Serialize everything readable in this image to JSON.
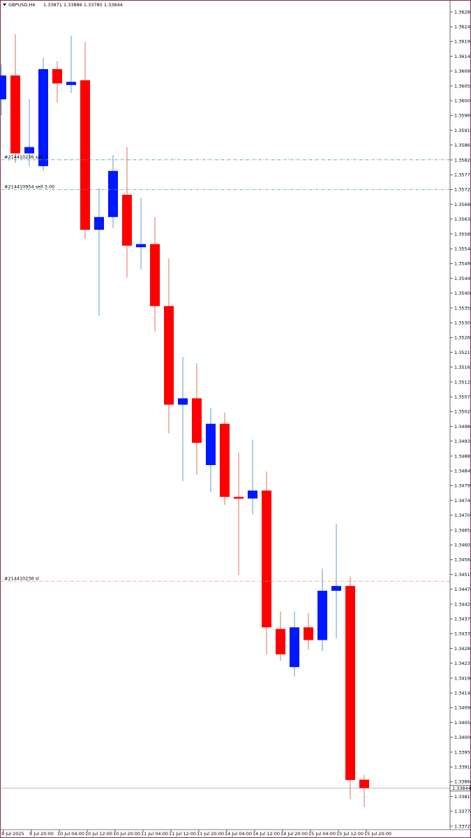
{
  "header": {
    "symbol": "GBPUSD,H4",
    "ohlc": "1.33871 1.33886 1.33785 1.33844"
  },
  "orders": [
    {
      "label": "#214410236 sell 7",
      "price": 1.3582
    },
    {
      "label": "#214410954 sell 3.00",
      "price": 1.35726
    },
    {
      "label": "#214410236 sl",
      "price": 1.34495
    }
  ],
  "current_price": {
    "label": "1.33844",
    "value": 1.33844
  },
  "colors": {
    "bull": "#0018ff",
    "bear": "#ff0000",
    "bull_wick": "#5b9bd5",
    "bear_wick": "#e07050",
    "order_line": "#4a9aa0",
    "sl_line": "#f0a080",
    "frame": "#7a2f5a",
    "price_line": "#b0b0b0"
  },
  "chart_data": {
    "type": "candlestick",
    "title": "",
    "y_axis_ticks": [
      "1.36285",
      "1.36240",
      "1.36190",
      "1.36145",
      "1.36095",
      "1.36050",
      "1.36005",
      "1.35960",
      "1.35910",
      "1.35865",
      "1.35820",
      "1.35770",
      "1.35725",
      "1.35680",
      "1.35630",
      "1.35585",
      "1.35540",
      "1.35490",
      "1.35445",
      "1.35400",
      "1.35350",
      "1.35305",
      "1.35260",
      "1.35215",
      "1.35165",
      "1.35120",
      "1.35075",
      "1.35025",
      "1.34980",
      "1.34935",
      "1.34885",
      "1.34840",
      "1.34795",
      "1.34745",
      "1.34700",
      "1.34655",
      "1.34605",
      "1.34560",
      "1.34515",
      "1.34470",
      "1.34420",
      "1.34375",
      "1.34330",
      "1.34280",
      "1.34235",
      "1.34190",
      "1.34140",
      "1.34095",
      "1.34050",
      "1.34000",
      "1.33955",
      "1.33910",
      "1.33860",
      "1.33815",
      "1.33770",
      "1.33725"
    ],
    "x_axis_ticks": [
      "9 Jul 2025",
      "9 Jul 20:00",
      "10 Jul 04:00",
      "10 Jul 12:00",
      "10 Jul 20:00",
      "11 Jul 04:00",
      "11 Jul 12:00",
      "11 Jul 20:00",
      "14 Jul 04:00",
      "14 Jul 12:00",
      "14 Jul 20:00",
      "15 Jul 04:00",
      "15 Jul 12:00",
      "15 Jul 20:00"
    ],
    "ylim": [
      1.33725,
      1.36285
    ],
    "candles": [
      {
        "o": 1.3601,
        "h": 1.3612,
        "l": 1.3596,
        "c": 1.36085
      },
      {
        "o": 1.36085,
        "h": 1.36215,
        "l": 1.3581,
        "c": 1.3584
      },
      {
        "o": 1.3584,
        "h": 1.3601,
        "l": 1.358,
        "c": 1.3586
      },
      {
        "o": 1.358,
        "h": 1.3614,
        "l": 1.35785,
        "c": 1.36105
      },
      {
        "o": 1.36105,
        "h": 1.3613,
        "l": 1.36,
        "c": 1.3606
      },
      {
        "o": 1.36055,
        "h": 1.3621,
        "l": 1.3603,
        "c": 1.36065
      },
      {
        "o": 1.3607,
        "h": 1.3619,
        "l": 1.3557,
        "c": 1.356
      },
      {
        "o": 1.356,
        "h": 1.3573,
        "l": 1.3533,
        "c": 1.3564
      },
      {
        "o": 1.3564,
        "h": 1.35835,
        "l": 1.35605,
        "c": 1.35785
      },
      {
        "o": 1.3571,
        "h": 1.3586,
        "l": 1.3545,
        "c": 1.3555
      },
      {
        "o": 1.35545,
        "h": 1.357,
        "l": 1.35475,
        "c": 1.35555
      },
      {
        "o": 1.35555,
        "h": 1.3564,
        "l": 1.3528,
        "c": 1.3536
      },
      {
        "o": 1.3536,
        "h": 1.3551,
        "l": 1.3496,
        "c": 1.3505
      },
      {
        "o": 1.3505,
        "h": 1.352,
        "l": 1.3481,
        "c": 1.3507
      },
      {
        "o": 1.3507,
        "h": 1.3518,
        "l": 1.3483,
        "c": 1.3493
      },
      {
        "o": 1.3486,
        "h": 1.3504,
        "l": 1.34775,
        "c": 1.3499
      },
      {
        "o": 1.3499,
        "h": 1.35025,
        "l": 1.34735,
        "c": 1.3476
      },
      {
        "o": 1.3476,
        "h": 1.349,
        "l": 1.34515,
        "c": 1.34755
      },
      {
        "o": 1.34755,
        "h": 1.3494,
        "l": 1.34705,
        "c": 1.3478
      },
      {
        "o": 1.3478,
        "h": 1.3484,
        "l": 1.34265,
        "c": 1.3435
      },
      {
        "o": 1.34345,
        "h": 1.344,
        "l": 1.34245,
        "c": 1.34265
      },
      {
        "o": 1.34225,
        "h": 1.344,
        "l": 1.34195,
        "c": 1.3435
      },
      {
        "o": 1.3435,
        "h": 1.34395,
        "l": 1.3428,
        "c": 1.3431
      },
      {
        "o": 1.3431,
        "h": 1.34535,
        "l": 1.34275,
        "c": 1.34465
      },
      {
        "o": 1.34465,
        "h": 1.34675,
        "l": 1.34315,
        "c": 1.3448
      },
      {
        "o": 1.3448,
        "h": 1.3451,
        "l": 1.3381,
        "c": 1.3387
      },
      {
        "o": 1.33871,
        "h": 1.33886,
        "l": 1.33785,
        "c": 1.33844
      }
    ]
  }
}
